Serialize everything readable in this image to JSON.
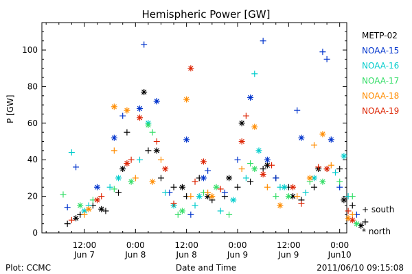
{
  "chart_data": {
    "type": "scatter",
    "title": "Hemispheric Power [GW]",
    "ylabel": "P [GW]",
    "xlabel": "Date and Time",
    "ylim": [
      0,
      115
    ],
    "xlim": [
      1307412000000,
      1307670000000
    ],
    "x_unit": "UTC datetime (ISO 8601)",
    "yticks": [
      0,
      20,
      40,
      60,
      80,
      100
    ],
    "xticks": [
      {
        "t": "2011-06-07T12:00:00Z",
        "line1": "12:00",
        "line2": "Jun 7"
      },
      {
        "t": "2011-06-08T00:00:00Z",
        "line1": "0:00",
        "line2": "Jun 8"
      },
      {
        "t": "2011-06-08T12:00:00Z",
        "line1": "12:00",
        "line2": "Jun 8"
      },
      {
        "t": "2011-06-09T00:00:00Z",
        "line1": "0:00",
        "line2": "Jun 9"
      },
      {
        "t": "2011-06-09T12:00:00Z",
        "line1": "12:00",
        "line2": "Jun 9"
      },
      {
        "t": "2011-06-10T00:00:00Z",
        "line1": "0:00",
        "line2": "Jun10"
      }
    ],
    "marker_legend": [
      {
        "symbol": "+",
        "label": "south"
      },
      {
        "symbol": "*",
        "label": "north"
      }
    ],
    "series": [
      {
        "name": "METP-02",
        "color": "#000000",
        "south": [
          [
            "2011-06-07T08:00:00Z",
            5
          ],
          [
            "2011-06-07T11:00:00Z",
            10
          ],
          [
            "2011-06-07T14:00:00Z",
            15
          ],
          [
            "2011-06-07T17:00:00Z",
            12
          ],
          [
            "2011-06-07T20:00:00Z",
            22
          ],
          [
            "2011-06-07T22:00:00Z",
            55
          ],
          [
            "2011-06-08T03:00:00Z",
            45
          ],
          [
            "2011-06-08T06:00:00Z",
            30
          ],
          [
            "2011-06-08T09:00:00Z",
            25
          ],
          [
            "2011-06-08T12:00:00Z",
            20
          ],
          [
            "2011-06-08T15:00:00Z",
            30
          ],
          [
            "2011-06-08T18:00:00Z",
            18
          ],
          [
            "2011-06-08T21:00:00Z",
            20
          ],
          [
            "2011-06-09T00:00:00Z",
            25
          ],
          [
            "2011-06-09T03:00:00Z",
            28
          ],
          [
            "2011-06-09T06:00:00Z",
            35
          ],
          [
            "2011-06-09T09:00:00Z",
            30
          ],
          [
            "2011-06-09T12:00:00Z",
            25
          ],
          [
            "2011-06-09T15:00:00Z",
            18
          ],
          [
            "2011-06-09T18:00:00Z",
            25
          ],
          [
            "2011-06-09T21:00:00Z",
            35
          ],
          [
            "2011-06-10T00:00:00Z",
            35
          ],
          [
            "2011-06-10T03:00:00Z",
            15
          ],
          [
            "2011-06-10T06:00:00Z",
            6
          ]
        ],
        "north": [
          [
            "2011-06-07T10:00:00Z",
            8
          ],
          [
            "2011-06-07T16:00:00Z",
            13
          ],
          [
            "2011-06-07T21:00:00Z",
            35
          ],
          [
            "2011-06-08T02:00:00Z",
            77
          ],
          [
            "2011-06-08T05:00:00Z",
            45
          ],
          [
            "2011-06-08T11:00:00Z",
            25
          ],
          [
            "2011-06-08T17:00:00Z",
            20
          ],
          [
            "2011-06-08T22:00:00Z",
            30
          ],
          [
            "2011-06-09T01:00:00Z",
            60
          ],
          [
            "2011-06-09T07:00:00Z",
            37
          ],
          [
            "2011-06-09T13:00:00Z",
            20
          ],
          [
            "2011-06-09T19:00:00Z",
            35
          ],
          [
            "2011-06-10T01:00:00Z",
            18
          ],
          [
            "2011-06-10T05:00:00Z",
            4
          ]
        ]
      },
      {
        "name": "NOAA-15",
        "color": "#0033cc",
        "south": [
          [
            "2011-06-07T08:00:00Z",
            14
          ],
          [
            "2011-06-07T10:00:00Z",
            36
          ],
          [
            "2011-06-07T21:00:00Z",
            64
          ],
          [
            "2011-06-08T02:00:00Z",
            103
          ],
          [
            "2011-06-08T05:00:00Z",
            72
          ],
          [
            "2011-06-08T08:00:00Z",
            22
          ],
          [
            "2011-06-08T13:00:00Z",
            10
          ],
          [
            "2011-06-08T17:00:00Z",
            34
          ],
          [
            "2011-06-08T21:00:00Z",
            22
          ],
          [
            "2011-06-09T00:00:00Z",
            40
          ],
          [
            "2011-06-09T06:00:00Z",
            105
          ],
          [
            "2011-06-09T09:00:00Z",
            30
          ],
          [
            "2011-06-09T14:00:00Z",
            67
          ],
          [
            "2011-06-09T20:00:00Z",
            99
          ],
          [
            "2011-06-09T21:00:00Z",
            95
          ],
          [
            "2011-06-10T00:00:00Z",
            25
          ],
          [
            "2011-06-10T04:00:00Z",
            10
          ]
        ],
        "north": [
          [
            "2011-06-07T15:00:00Z",
            25
          ],
          [
            "2011-06-07T19:00:00Z",
            52
          ],
          [
            "2011-06-08T01:00:00Z",
            68
          ],
          [
            "2011-06-08T05:00:00Z",
            72
          ],
          [
            "2011-06-08T12:00:00Z",
            51
          ],
          [
            "2011-06-08T16:00:00Z",
            30
          ],
          [
            "2011-06-09T03:00:00Z",
            74
          ],
          [
            "2011-06-09T07:00:00Z",
            40
          ],
          [
            "2011-06-09T15:00:00Z",
            52
          ],
          [
            "2011-06-09T22:00:00Z",
            51
          ]
        ]
      },
      {
        "name": "NOAA-16",
        "color": "#00cccc",
        "south": [
          [
            "2011-06-07T09:00:00Z",
            44
          ],
          [
            "2011-06-07T13:00:00Z",
            15
          ],
          [
            "2011-06-07T18:00:00Z",
            25
          ],
          [
            "2011-06-08T01:00:00Z",
            40
          ],
          [
            "2011-06-08T07:00:00Z",
            22
          ],
          [
            "2011-06-08T14:00:00Z",
            15
          ],
          [
            "2011-06-08T20:00:00Z",
            12
          ],
          [
            "2011-06-09T02:00:00Z",
            30
          ],
          [
            "2011-06-09T04:00:00Z",
            87
          ],
          [
            "2011-06-09T10:00:00Z",
            25
          ],
          [
            "2011-06-09T16:00:00Z",
            22
          ],
          [
            "2011-06-09T23:00:00Z",
            33
          ],
          [
            "2011-06-10T02:00:00Z",
            20
          ]
        ],
        "north": [
          [
            "2011-06-07T12:00:00Z",
            12
          ],
          [
            "2011-06-07T20:00:00Z",
            30
          ],
          [
            "2011-06-08T03:00:00Z",
            60
          ],
          [
            "2011-06-08T09:00:00Z",
            15
          ],
          [
            "2011-06-08T15:00:00Z",
            20
          ],
          [
            "2011-06-08T23:00:00Z",
            18
          ],
          [
            "2011-06-09T05:00:00Z",
            45
          ],
          [
            "2011-06-09T11:00:00Z",
            25
          ],
          [
            "2011-06-09T18:00:00Z",
            30
          ],
          [
            "2011-06-10T01:00:00Z",
            42
          ]
        ]
      },
      {
        "name": "NOAA-17",
        "color": "#33dd66",
        "south": [
          [
            "2011-06-07T07:00:00Z",
            21
          ],
          [
            "2011-06-07T14:00:00Z",
            18
          ],
          [
            "2011-06-07T19:00:00Z",
            24
          ],
          [
            "2011-06-08T04:00:00Z",
            55
          ],
          [
            "2011-06-08T10:00:00Z",
            10
          ],
          [
            "2011-06-08T16:00:00Z",
            22
          ],
          [
            "2011-06-08T22:00:00Z",
            10
          ],
          [
            "2011-06-09T03:00:00Z",
            38
          ],
          [
            "2011-06-09T09:00:00Z",
            20
          ],
          [
            "2011-06-09T17:00:00Z",
            28
          ],
          [
            "2011-06-10T00:00:00Z",
            28
          ],
          [
            "2011-06-10T03:00:00Z",
            20
          ]
        ],
        "north": [
          [
            "2011-06-07T11:00:00Z",
            15
          ],
          [
            "2011-06-07T23:00:00Z",
            28
          ],
          [
            "2011-06-08T03:00:00Z",
            59
          ],
          [
            "2011-06-08T11:00:00Z",
            12
          ],
          [
            "2011-06-08T19:00:00Z",
            25
          ],
          [
            "2011-06-09T04:00:00Z",
            35
          ],
          [
            "2011-06-09T12:00:00Z",
            20
          ],
          [
            "2011-06-09T20:00:00Z",
            28
          ],
          [
            "2011-06-10T04:00:00Z",
            5
          ]
        ]
      },
      {
        "name": "NOAA-18",
        "color": "#ff8c00",
        "south": [
          [
            "2011-06-07T12:00:00Z",
            10
          ],
          [
            "2011-06-07T19:00:00Z",
            45
          ],
          [
            "2011-06-08T00:00:00Z",
            30
          ],
          [
            "2011-06-08T06:00:00Z",
            40
          ],
          [
            "2011-06-08T13:00:00Z",
            20
          ],
          [
            "2011-06-08T17:00:00Z",
            22
          ],
          [
            "2011-06-09T01:00:00Z",
            35
          ],
          [
            "2011-06-09T07:00:00Z",
            25
          ],
          [
            "2011-06-09T14:00:00Z",
            20
          ],
          [
            "2011-06-09T18:00:00Z",
            48
          ],
          [
            "2011-06-09T22:00:00Z",
            37
          ],
          [
            "2011-06-10T03:00:00Z",
            10
          ]
        ],
        "north": [
          [
            "2011-06-07T13:00:00Z",
            13
          ],
          [
            "2011-06-07T19:00:00Z",
            69
          ],
          [
            "2011-06-07T22:00:00Z",
            67
          ],
          [
            "2011-06-08T04:00:00Z",
            28
          ],
          [
            "2011-06-08T12:00:00Z",
            73
          ],
          [
            "2011-06-08T18:00:00Z",
            20
          ],
          [
            "2011-06-09T04:00:00Z",
            58
          ],
          [
            "2011-06-09T10:00:00Z",
            15
          ],
          [
            "2011-06-09T17:00:00Z",
            30
          ],
          [
            "2011-06-09T20:00:00Z",
            54
          ],
          [
            "2011-06-10T02:00:00Z",
            8
          ]
        ]
      },
      {
        "name": "NOAA-19",
        "color": "#dd2200",
        "south": [
          [
            "2011-06-07T09:00:00Z",
            7
          ],
          [
            "2011-06-07T16:00:00Z",
            20
          ],
          [
            "2011-06-07T23:00:00Z",
            40
          ],
          [
            "2011-06-08T05:00:00Z",
            50
          ],
          [
            "2011-06-08T09:00:00Z",
            16
          ],
          [
            "2011-06-08T14:00:00Z",
            28
          ],
          [
            "2011-06-08T20:00:00Z",
            24
          ],
          [
            "2011-06-09T02:00:00Z",
            64
          ],
          [
            "2011-06-09T08:00:00Z",
            37
          ],
          [
            "2011-06-09T15:00:00Z",
            16
          ],
          [
            "2011-06-09T19:00:00Z",
            36
          ],
          [
            "2011-06-10T02:00:00Z",
            12
          ]
        ],
        "north": [
          [
            "2011-06-07T15:00:00Z",
            18
          ],
          [
            "2011-06-07T22:00:00Z",
            38
          ],
          [
            "2011-06-08T01:00:00Z",
            63
          ],
          [
            "2011-06-08T07:00:00Z",
            35
          ],
          [
            "2011-06-08T13:00:00Z",
            90
          ],
          [
            "2011-06-08T16:00:00Z",
            39
          ],
          [
            "2011-06-09T01:00:00Z",
            50
          ],
          [
            "2011-06-09T06:00:00Z",
            32
          ],
          [
            "2011-06-09T13:00:00Z",
            25
          ],
          [
            "2011-06-09T21:00:00Z",
            35
          ],
          [
            "2011-06-10T03:00:00Z",
            7
          ]
        ]
      }
    ]
  },
  "footer": {
    "left": "Plot: CCMC",
    "right": "2011/06/10 09:15:08"
  }
}
